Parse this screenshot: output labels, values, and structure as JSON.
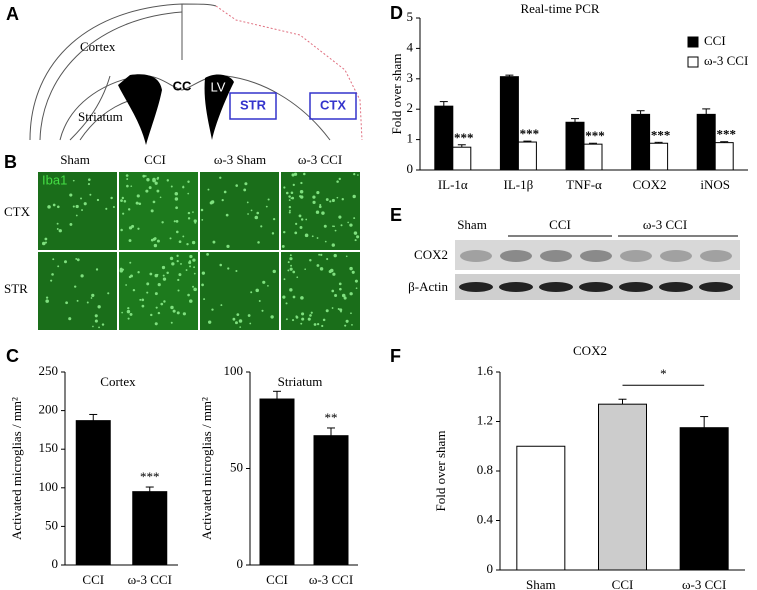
{
  "panel_letters": [
    "A",
    "B",
    "C",
    "D",
    "E",
    "F"
  ],
  "diagram": {
    "cortex": "Cortex",
    "cc": "CC",
    "lv": "LV",
    "striatum": "Striatum",
    "box_str": "STR",
    "box_ctx": "CTX"
  },
  "micrographs": {
    "columns": [
      "Sham",
      "CCI",
      "ω-3 Sham",
      "ω-3 CCI"
    ],
    "rows": [
      "CTX",
      "STR"
    ],
    "stain": "Iba1"
  },
  "blot": {
    "groups": [
      "Sham",
      "CCI",
      "ω-3 CCI"
    ],
    "rows": [
      "COX2",
      "β-Actin"
    ]
  },
  "chart_data": [
    {
      "type": "bar",
      "title": "Cortex",
      "y_label": "Activated microglias / mm²",
      "categories": [
        "CCI",
        "ω-3 CCI"
      ],
      "values": [
        187,
        95
      ],
      "errors": [
        8,
        6
      ],
      "color": "#000000",
      "ylim": [
        0,
        250
      ],
      "yticks": [
        0,
        50,
        100,
        150,
        200,
        250
      ],
      "annotations": [
        {
          "text": "***",
          "category": "ω-3 CCI"
        }
      ]
    },
    {
      "type": "bar",
      "title": "Striatum",
      "y_label": "Activated microglias / mm²",
      "categories": [
        "CCI",
        "ω-3 CCI"
      ],
      "values": [
        86,
        67
      ],
      "errors": [
        4,
        4
      ],
      "color": "#000000",
      "ylim": [
        0,
        100
      ],
      "yticks": [
        0,
        50,
        100
      ],
      "annotations": [
        {
          "text": "**",
          "category": "ω-3 CCI"
        }
      ]
    },
    {
      "type": "grouped_bar",
      "title": "Real-time PCR",
      "y_label": "Fold over sham",
      "categories": [
        "IL-1α",
        "IL-1β",
        "TNF-α",
        "COX2",
        "iNOS"
      ],
      "series": [
        {
          "name": "CCI",
          "color": "#000000",
          "values": [
            2.1,
            3.07,
            1.57,
            1.83,
            1.83
          ],
          "errors": [
            0.15,
            0.05,
            0.12,
            0.12,
            0.18
          ]
        },
        {
          "name": "ω-3 CCI",
          "color": "#ffffff",
          "values": [
            0.75,
            0.92,
            0.85,
            0.88,
            0.9
          ],
          "errors": [
            0.08,
            0.03,
            0.03,
            0.03,
            0.03
          ],
          "annotations": [
            "***",
            "***",
            "***",
            "***",
            "***"
          ]
        }
      ],
      "ylim": [
        0,
        5
      ],
      "yticks": [
        0,
        1,
        2,
        3,
        4,
        5
      ],
      "legend": "top-right"
    },
    {
      "type": "bar",
      "title": "COX2",
      "y_label": "Fold over sham",
      "categories": [
        "Sham",
        "CCI",
        "ω-3 CCI"
      ],
      "values": [
        1.0,
        1.34,
        1.15
      ],
      "errors": [
        0,
        0.04,
        0.09
      ],
      "colors": [
        "#ffffff",
        "#cccccc",
        "#000000"
      ],
      "ylim": [
        0,
        1.6
      ],
      "yticks": [
        0,
        0.4,
        0.8,
        1.2,
        1.6
      ],
      "significance": {
        "text": "*",
        "from": "CCI",
        "to": "ω-3 CCI"
      }
    }
  ]
}
